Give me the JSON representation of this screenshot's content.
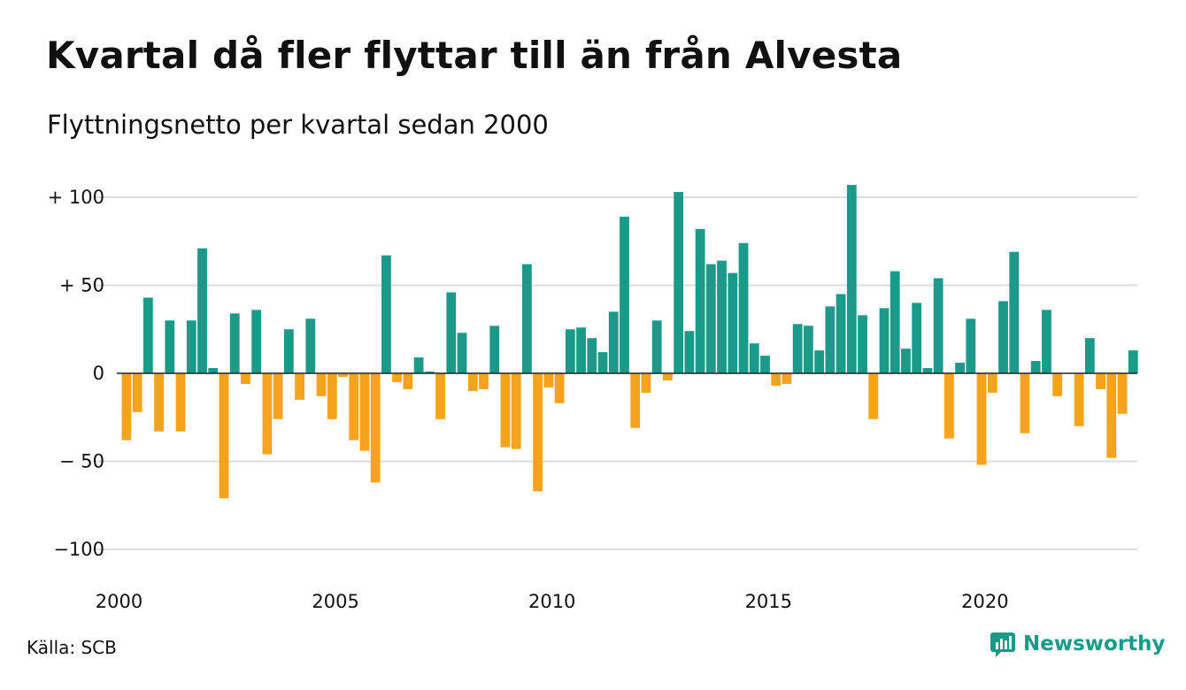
{
  "title": "Kvartal då fler flyttar till än från Alvesta",
  "subtitle": "Flyttningsnetto per kvartal sedan 2000",
  "source": "Källa: SCB",
  "brand": {
    "name": "Newsworthy",
    "icon": "bar-chart-logo-icon"
  },
  "colors": {
    "positive": "#1b9a8a",
    "negative": "#f5a21c",
    "grid": "#dddddd",
    "axis": "#222222"
  },
  "chart_data": {
    "type": "bar",
    "title": "Kvartal då fler flyttar till än från Alvesta",
    "subtitle": "Flyttningsnetto per kvartal sedan 2000",
    "xlabel": "",
    "ylabel": "",
    "x_start_year": 2000,
    "quarters_per_year": 4,
    "x_ticks": [
      "2000",
      "2005",
      "2010",
      "2015",
      "2020"
    ],
    "y_ticks": [
      {
        "value": 100,
        "label": "+ 100"
      },
      {
        "value": 50,
        "label": "+  50"
      },
      {
        "value": 0,
        "label": "0"
      },
      {
        "value": -50,
        "label": "− 50"
      },
      {
        "value": -100,
        "label": "−100"
      }
    ],
    "ylim": [
      -110,
      110
    ],
    "grid": true,
    "values": [
      -38,
      -22,
      43,
      -33,
      30,
      -33,
      30,
      71,
      3,
      -71,
      34,
      -6,
      36,
      -46,
      -26,
      25,
      -15,
      31,
      -13,
      -26,
      -2,
      -38,
      -44,
      -62,
      67,
      -5,
      -9,
      9,
      1,
      -26,
      46,
      23,
      -10,
      -9,
      27,
      -42,
      -43,
      62,
      -67,
      -8,
      -17,
      25,
      26,
      20,
      12,
      35,
      89,
      -31,
      -11,
      30,
      -4,
      103,
      24,
      82,
      62,
      64,
      57,
      74,
      17,
      10,
      -7,
      -6,
      28,
      27,
      13,
      38,
      45,
      107,
      33,
      -26,
      37,
      58,
      14,
      40,
      3,
      54,
      -37,
      6,
      31,
      -52,
      -11,
      41,
      69,
      -34,
      7,
      36,
      -13,
      0,
      -30,
      20,
      -9,
      -48,
      -23,
      13
    ]
  }
}
